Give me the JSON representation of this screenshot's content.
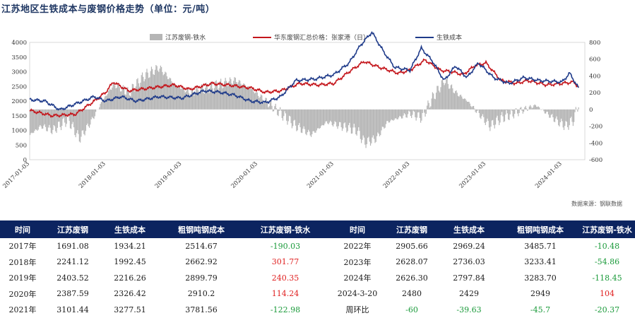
{
  "title": "江苏地区生铁成本与废钢价格走势（单位：元/吨）",
  "source": "数据来源：钢联数据",
  "legend": {
    "bar": "江苏废钢-铁水",
    "red": "华东废钢汇总价格：张家港（日）",
    "blue": "生铁成本"
  },
  "colors": {
    "red": "#c4161c",
    "blue": "#1f3b8a",
    "bar": "#b5b5b5",
    "header": "#0c2460"
  },
  "chart_data": {
    "type": "line",
    "x_ticks": [
      "2017-01-03",
      "2018-01-03",
      "2019-01-03",
      "2020-01-03",
      "2021-01-03",
      "2022-01-03",
      "2023-01-03",
      "2024-01-03"
    ],
    "y_left": [
      0,
      500,
      1000,
      1500,
      2000,
      2500,
      3000,
      3500,
      4000
    ],
    "y_right": [
      -600,
      -400,
      -200,
      0,
      200,
      400,
      600,
      800
    ],
    "ylim_left": [
      0,
      4000
    ],
    "ylim_right": [
      -600,
      800
    ],
    "series": [
      {
        "name": "华东废钢汇总价格：张家港（日）",
        "axis": "left",
        "color": "#c4161c",
        "x": [
          2017.0,
          2017.3,
          2017.6,
          2017.85,
          2018.0,
          2018.1,
          2018.3,
          2018.6,
          2018.9,
          2019.1,
          2019.4,
          2019.6,
          2019.9,
          2020.1,
          2020.3,
          2020.55,
          2020.8,
          2021.0,
          2021.2,
          2021.4,
          2021.6,
          2021.85,
          2022.0,
          2022.2,
          2022.4,
          2022.55,
          2022.7,
          2022.85,
          2023.0,
          2023.2,
          2023.4,
          2023.55,
          2023.8,
          2024.0,
          2024.15,
          2024.22
        ],
        "y": [
          1680,
          1500,
          1550,
          2000,
          2300,
          2650,
          2350,
          2450,
          2550,
          2400,
          2600,
          2550,
          2450,
          2300,
          2350,
          2600,
          2550,
          2600,
          3000,
          3350,
          3150,
          2950,
          3050,
          3400,
          3050,
          3000,
          2900,
          3200,
          3300,
          2700,
          2600,
          2700,
          2550,
          2600,
          2650,
          2480
        ]
      },
      {
        "name": "生铁成本",
        "axis": "left",
        "color": "#1f3b8a",
        "x": [
          2017.0,
          2017.2,
          2017.4,
          2017.6,
          2017.85,
          2018.0,
          2018.2,
          2018.4,
          2018.7,
          2019.0,
          2019.3,
          2019.5,
          2019.7,
          2019.9,
          2020.1,
          2020.3,
          2020.5,
          2020.75,
          2021.0,
          2021.2,
          2021.35,
          2021.5,
          2021.65,
          2021.8,
          2022.0,
          2022.15,
          2022.3,
          2022.45,
          2022.6,
          2022.75,
          2022.9,
          2023.1,
          2023.3,
          2023.5,
          2023.7,
          2024.0,
          2024.1,
          2024.22
        ],
        "y": [
          2050,
          2000,
          1700,
          1900,
          2150,
          2000,
          2150,
          2000,
          2150,
          2100,
          2350,
          2300,
          2200,
          2000,
          1950,
          2150,
          2700,
          2750,
          2900,
          3300,
          3900,
          4350,
          3700,
          3150,
          3050,
          3800,
          3350,
          2700,
          3200,
          2800,
          3300,
          2800,
          2600,
          2800,
          2700,
          2650,
          2950,
          2430
        ]
      },
      {
        "name": "江苏废钢-铁水",
        "axis": "right",
        "type": "bar",
        "color": "#b5b5b5",
        "x": [
          2017.0,
          2017.15,
          2017.3,
          2017.5,
          2017.65,
          2017.8,
          2017.95,
          2018.1,
          2018.3,
          2018.5,
          2018.7,
          2018.9,
          2019.1,
          2019.3,
          2019.5,
          2019.7,
          2019.9,
          2020.1,
          2020.3,
          2020.5,
          2020.7,
          2020.9,
          2021.1,
          2021.3,
          2021.4,
          2021.55,
          2021.7,
          2021.85,
          2022.0,
          2022.15,
          2022.3,
          2022.45,
          2022.6,
          2022.75,
          2022.9,
          2023.05,
          2023.2,
          2023.35,
          2023.5,
          2023.65,
          2023.8,
          2023.95,
          2024.05,
          2024.15,
          2024.22
        ],
        "y": [
          -300,
          -200,
          -250,
          -120,
          -350,
          -150,
          100,
          300,
          200,
          400,
          500,
          300,
          200,
          250,
          300,
          350,
          250,
          100,
          -50,
          -200,
          -300,
          -150,
          -200,
          -250,
          -400,
          -350,
          -150,
          -100,
          -50,
          -100,
          150,
          350,
          200,
          100,
          -50,
          -200,
          -100,
          -50,
          0,
          50,
          -50,
          -150,
          -200,
          -120,
          100
        ]
      }
    ]
  },
  "table": {
    "headers": [
      "时间",
      "江苏废钢",
      "生铁成本",
      "粗钢吨钢成本",
      "江苏废钢-铁水",
      "时间",
      "江苏废钢",
      "生铁成本",
      "粗钢吨钢成本",
      "江苏废钢-铁水"
    ],
    "rows": [
      {
        "a": [
          "2017年",
          "1691.08",
          "1934.21",
          "2514.67",
          "-190.03"
        ],
        "b": [
          "2022年",
          "2905.66",
          "2969.24",
          "3485.71",
          "-10.48"
        ]
      },
      {
        "a": [
          "2018年",
          "2241.12",
          "1992.45",
          "2662.92",
          "301.77"
        ],
        "b": [
          "2023年",
          "2628.07",
          "2736.03",
          "3233.41",
          "-54.86"
        ]
      },
      {
        "a": [
          "2019年",
          "2403.52",
          "2216.26",
          "2899.79",
          "240.35"
        ],
        "b": [
          "2024年",
          "2626.30",
          "2797.84",
          "3283.70",
          "-118.45"
        ]
      },
      {
        "a": [
          "2020年",
          "2387.59",
          "2326.42",
          "2910.2",
          "114.24"
        ],
        "b": [
          "2024-3-20",
          "2480",
          "2429",
          "2949",
          "104"
        ]
      },
      {
        "a": [
          "2021年",
          "3101.44",
          "3277.51",
          "3781.56",
          "-122.98"
        ],
        "b": [
          "周环比",
          "-60",
          "-39.63",
          "-45.7",
          "-20.37"
        ]
      }
    ]
  }
}
